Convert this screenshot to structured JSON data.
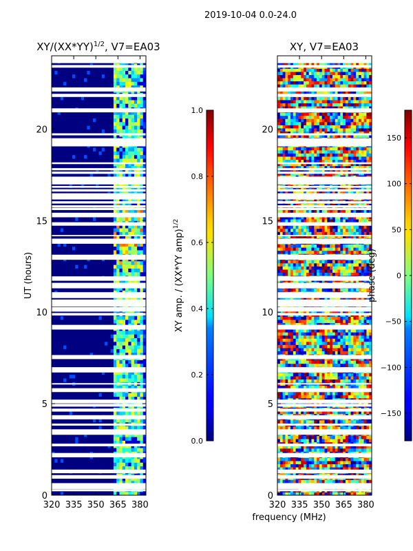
{
  "suptitle": "2019-10-04 0.0-24.0",
  "shared_xlabel": "frequency (MHz)",
  "chart_data": [
    {
      "type": "heatmap",
      "title": "XY/(XX*YY)",
      "title_exponent": "1/2",
      "title_suffix": ", V7=EA03",
      "xlabel": "",
      "ylabel": "UT (hours)",
      "xlim": [
        320,
        384
      ],
      "ylim": [
        0,
        24
      ],
      "xticks": [
        320,
        335,
        350,
        365,
        380
      ],
      "yticks": [
        0,
        5,
        10,
        15,
        20
      ],
      "colorbar": {
        "label": "XY amp. / (XX*YY amp)",
        "label_exponent": "1/2",
        "range": [
          0.0,
          1.0
        ],
        "ticks": [
          "0.0",
          "0.2",
          "0.4",
          "0.6",
          "0.8",
          "1.0"
        ],
        "colormap": "jet"
      },
      "notes": "Low amplitude (~0.0) for 320-362 MHz; elevated amplitude (0.3-0.8) in 362-381 MHz band; horizontal white gaps of flagged data."
    },
    {
      "type": "heatmap",
      "title": "XY, V7=EA03",
      "xlabel": "",
      "ylabel": "",
      "xlim": [
        320,
        384
      ],
      "ylim": [
        0,
        24
      ],
      "xticks": [
        320,
        335,
        350,
        365,
        380
      ],
      "yticks": [
        0,
        5,
        10,
        15,
        20
      ],
      "colorbar": {
        "label": "phase (deg)",
        "range": [
          -180,
          180
        ],
        "ticks": [
          "−150",
          "−100",
          "−50",
          "0",
          "50",
          "100",
          "150"
        ],
        "tick_values": [
          -150,
          -100,
          -50,
          0,
          50,
          100,
          150
        ],
        "colormap": "jet"
      },
      "notes": "Phase values span full -180..180 range across all frequencies with horizontal white gaps of flagged data."
    }
  ]
}
